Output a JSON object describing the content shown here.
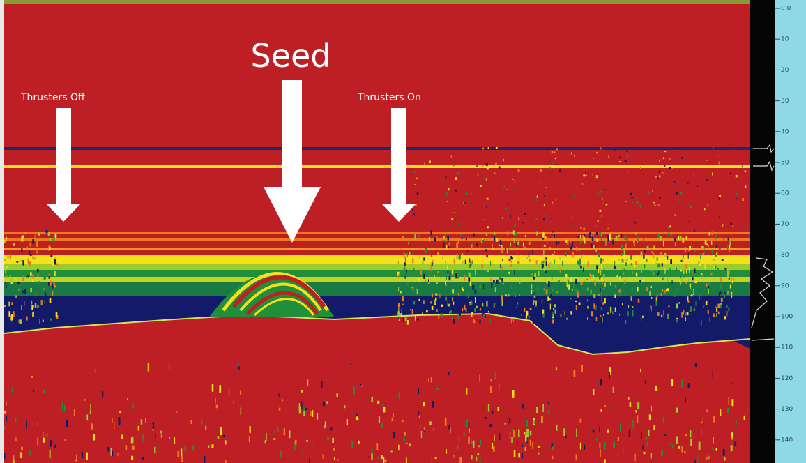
{
  "annotations": {
    "seed": "Seed",
    "thrusters_off": "Thrusters Off",
    "thrusters_on": "Thrusters On"
  },
  "depth_scale": [
    "0.0",
    "10",
    "20",
    "30",
    "40",
    "50",
    "60",
    "70",
    "80",
    "90",
    "100",
    "110",
    "120",
    "130",
    "140"
  ]
}
